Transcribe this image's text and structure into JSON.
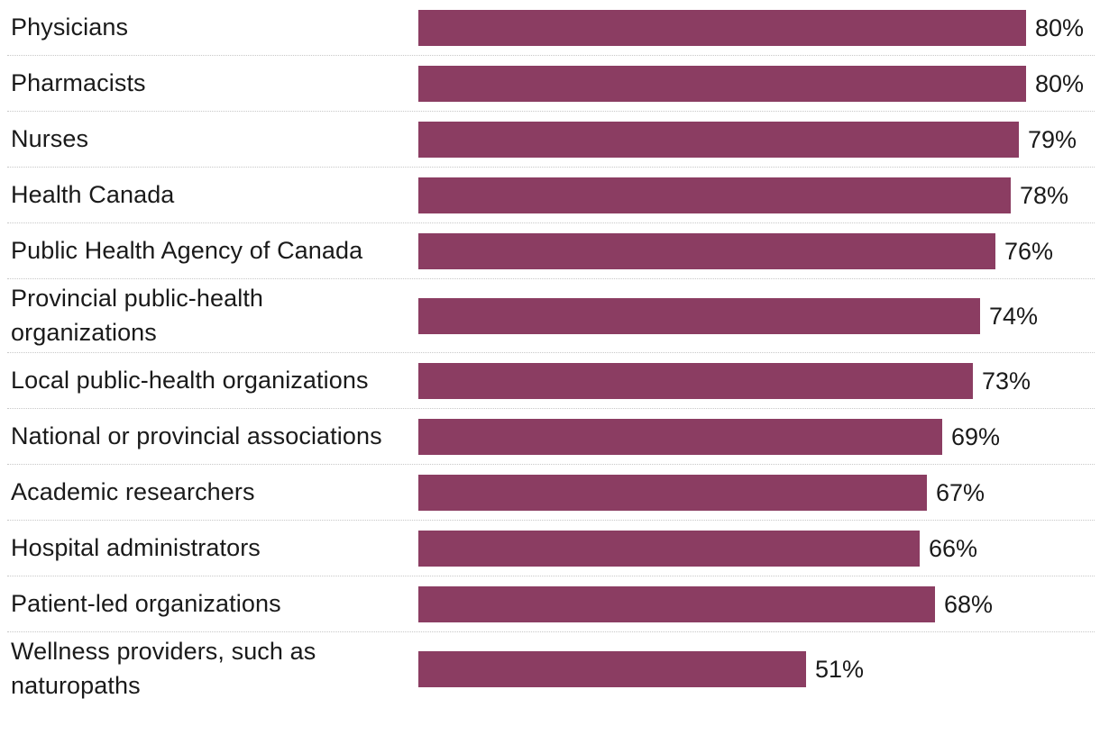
{
  "chart_data": {
    "type": "bar",
    "orientation": "horizontal",
    "title": "",
    "xlabel": "",
    "ylabel": "",
    "xlim": [
      0,
      80
    ],
    "value_suffix": "%",
    "bar_color": "#8b3d62",
    "categories": [
      "Physicians",
      "Pharmacists",
      "Nurses",
      "Health Canada",
      "Public Health Agency of Canada",
      "Provincial public-health organizations",
      "Local public-health organizations",
      "National or provincial associations",
      "Academic researchers",
      "Hospital administrators",
      "Patient-led organizations",
      "Wellness providers, such as naturopaths"
    ],
    "values": [
      80,
      80,
      79,
      78,
      76,
      74,
      73,
      69,
      67,
      66,
      68,
      51
    ],
    "value_labels": [
      "80%",
      "80%",
      "79%",
      "78%",
      "76%",
      "74%",
      "73%",
      "69%",
      "67%",
      "66%",
      "68%",
      "51%"
    ]
  }
}
